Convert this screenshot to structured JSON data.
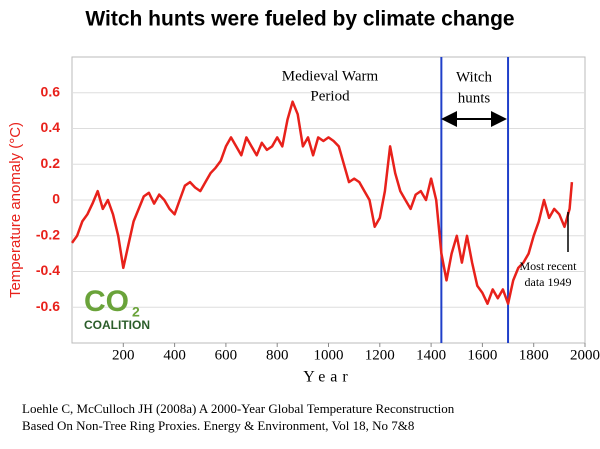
{
  "chart_data": {
    "type": "line",
    "title": "Witch hunts were fueled by climate change",
    "xlabel": "Year",
    "ylabel": "Temperature anomaly (°C)",
    "x": [
      0,
      20,
      40,
      60,
      80,
      100,
      120,
      140,
      160,
      180,
      200,
      220,
      240,
      260,
      280,
      300,
      320,
      340,
      360,
      380,
      400,
      420,
      440,
      460,
      480,
      500,
      520,
      540,
      560,
      580,
      600,
      620,
      640,
      660,
      680,
      700,
      720,
      740,
      760,
      780,
      800,
      820,
      840,
      860,
      880,
      900,
      920,
      940,
      960,
      980,
      1000,
      1020,
      1040,
      1060,
      1080,
      1100,
      1120,
      1140,
      1160,
      1180,
      1200,
      1220,
      1240,
      1260,
      1280,
      1300,
      1320,
      1340,
      1360,
      1380,
      1400,
      1420,
      1440,
      1460,
      1480,
      1500,
      1520,
      1540,
      1560,
      1580,
      1600,
      1620,
      1640,
      1660,
      1680,
      1700,
      1720,
      1740,
      1760,
      1780,
      1800,
      1820,
      1840,
      1860,
      1880,
      1900,
      1920,
      1940,
      1949
    ],
    "values": [
      -0.24,
      -0.2,
      -0.12,
      -0.08,
      -0.02,
      0.05,
      -0.05,
      0.0,
      -0.08,
      -0.2,
      -0.38,
      -0.25,
      -0.12,
      -0.05,
      0.02,
      0.04,
      -0.02,
      0.03,
      0.0,
      -0.05,
      -0.08,
      0.0,
      0.08,
      0.1,
      0.07,
      0.05,
      0.1,
      0.15,
      0.18,
      0.22,
      0.3,
      0.35,
      0.3,
      0.25,
      0.35,
      0.3,
      0.25,
      0.32,
      0.28,
      0.3,
      0.35,
      0.3,
      0.45,
      0.55,
      0.48,
      0.3,
      0.35,
      0.25,
      0.35,
      0.33,
      0.35,
      0.33,
      0.3,
      0.2,
      0.1,
      0.12,
      0.1,
      0.05,
      0.0,
      -0.15,
      -0.1,
      0.05,
      0.3,
      0.15,
      0.05,
      0.0,
      -0.05,
      0.03,
      0.05,
      0.0,
      0.12,
      0.0,
      -0.3,
      -0.45,
      -0.3,
      -0.2,
      -0.35,
      -0.2,
      -0.35,
      -0.48,
      -0.52,
      -0.58,
      -0.5,
      -0.55,
      -0.5,
      -0.58,
      -0.45,
      -0.38,
      -0.35,
      -0.3,
      -0.2,
      -0.12,
      0.0,
      -0.1,
      -0.05,
      -0.08,
      -0.15,
      -0.05,
      0.1
    ],
    "color": "#e8211b",
    "xlim": [
      0,
      2000
    ],
    "xticks": [
      200,
      400,
      600,
      800,
      1000,
      1200,
      1400,
      1600,
      1800,
      2000
    ],
    "ylim": [
      -0.8,
      0.8
    ],
    "yticks": [
      -0.6,
      -0.4,
      -0.2,
      0,
      0.2,
      0.4,
      0.6
    ],
    "grid": true,
    "vlines": [
      1440,
      1700
    ],
    "vline_color": "#1f3fc9",
    "annotations": {
      "medieval": [
        "Medieval Warm",
        "Period"
      ],
      "witch": [
        "Witch",
        "hunts"
      ],
      "recent": [
        "Most recent",
        "data 1949"
      ]
    },
    "logo": {
      "main": "CO",
      "sub": "2",
      "name": "COALITION"
    },
    "citation": [
      "Loehle C, McCulloch JH (2008a) A 2000-Year Global Temperature Reconstruction",
      "Based On Non-Tree Ring Proxies. Energy & Environment, Vol 18, No 7&8"
    ]
  }
}
